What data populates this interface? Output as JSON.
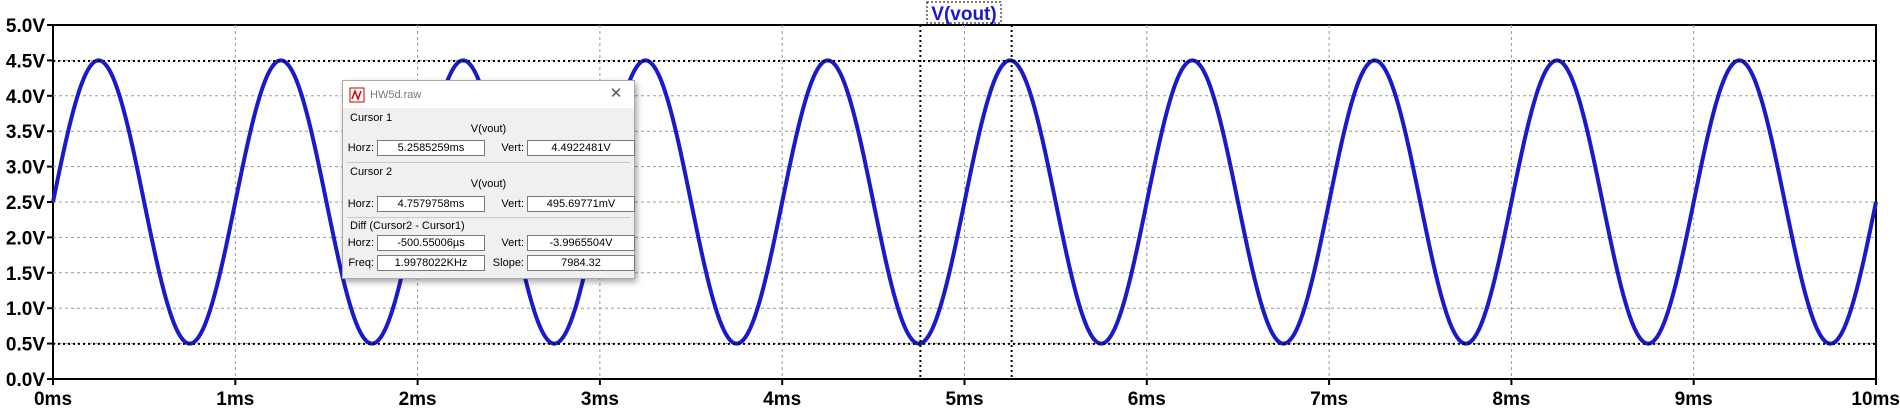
{
  "window": {
    "trace_title": "V(vout)",
    "colors": {
      "trace": "#1a1acc",
      "grid": "#9a9a9a",
      "frame": "#000000",
      "cursor": "#000000"
    }
  },
  "chart_data": {
    "type": "line",
    "title": "V(vout)",
    "xlabel": "",
    "ylabel": "",
    "xlim": [
      0,
      10
    ],
    "ylim": [
      0,
      5
    ],
    "x_unit": "ms",
    "y_unit": "V",
    "x_ticks": [
      "0ms",
      "1ms",
      "2ms",
      "3ms",
      "4ms",
      "5ms",
      "6ms",
      "7ms",
      "8ms",
      "9ms",
      "10ms"
    ],
    "y_ticks": [
      "0.0V",
      "0.5V",
      "1.0V",
      "1.5V",
      "2.0V",
      "2.5V",
      "3.0V",
      "3.5V",
      "4.0V",
      "4.5V",
      "5.0V"
    ],
    "grid": true,
    "series": [
      {
        "name": "V(vout)",
        "function": "sine",
        "offset": 2.5,
        "amplitude": 2.0,
        "frequency_khz": 1.0,
        "phase_deg": 0
      }
    ],
    "cursors": [
      {
        "name": "Cursor 1",
        "x": 5.2585259,
        "y": 4.4922481
      },
      {
        "name": "Cursor 2",
        "x": 4.7579758,
        "y": 0.49569771
      }
    ]
  },
  "dialog": {
    "title": "HW5d.raw",
    "close_glyph": "✕",
    "cursor1": {
      "header": "Cursor 1",
      "signal": "V(vout)",
      "horz_label": "Horz:",
      "horz": "5.2585259ms",
      "vert_label": "Vert:",
      "vert": "4.4922481V"
    },
    "cursor2": {
      "header": "Cursor 2",
      "signal": "V(vout)",
      "horz_label": "Horz:",
      "horz": "4.7579758ms",
      "vert_label": "Vert:",
      "vert": "495.69771mV"
    },
    "diff": {
      "header": "Diff (Cursor2 - Cursor1)",
      "horz_label": "Horz:",
      "horz": "-500.55006µs",
      "vert_label": "Vert:",
      "vert": "-3.9965504V",
      "freq_label": "Freq:",
      "freq": "1.9978022KHz",
      "slope_label": "Slope:",
      "slope": "7984.32"
    }
  }
}
